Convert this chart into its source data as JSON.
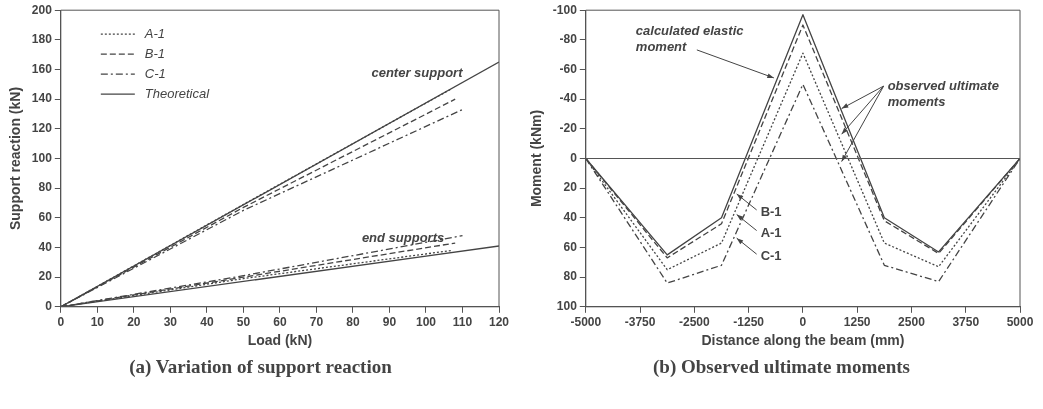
{
  "chart_data": [
    {
      "type": "line",
      "title": "(a)  Variation of support reaction",
      "xlabel": "Load (kN)",
      "ylabel": "Support reaction (kN)",
      "xlim": [
        0,
        120
      ],
      "xticks": [
        0,
        10,
        20,
        30,
        40,
        50,
        60,
        70,
        80,
        90,
        100,
        110,
        120
      ],
      "ylim": [
        0,
        200
      ],
      "yticks": [
        0,
        20,
        40,
        60,
        80,
        100,
        120,
        140,
        160,
        180,
        200
      ],
      "grid": false,
      "legend": "top left",
      "marker": "none",
      "series": [
        {
          "name": "A-1",
          "color": "#444444",
          "line_style": "dotted",
          "x": [
            0,
            50,
            107
          ],
          "values": [
            0,
            69,
            147
          ]
        },
        {
          "name": "B-1",
          "color": "#444444",
          "line_style": "dashed",
          "x": [
            0,
            50,
            108
          ],
          "values": [
            0,
            67,
            140
          ]
        },
        {
          "name": "C-1",
          "color": "#444444",
          "line_style": "dashdot",
          "x": [
            0,
            50,
            110
          ],
          "values": [
            0,
            65,
            133
          ]
        },
        {
          "name": "Theoretical",
          "color": "#444444",
          "line_style": "solid",
          "x": [
            0,
            120
          ],
          "values": [
            0,
            165
          ]
        },
        {
          "color": "#444444",
          "line_style": "dotted",
          "x": [
            0,
            50,
            107
          ],
          "values": [
            0,
            19,
            38
          ]
        },
        {
          "color": "#444444",
          "line_style": "dashed",
          "x": [
            0,
            50,
            108
          ],
          "values": [
            0,
            20,
            43
          ]
        },
        {
          "color": "#444444",
          "line_style": "dashdot",
          "x": [
            0,
            50,
            110
          ],
          "values": [
            0,
            21,
            48
          ]
        },
        {
          "color": "#444444",
          "line_style": "solid",
          "x": [
            0,
            120
          ],
          "values": [
            0,
            41
          ]
        }
      ],
      "annotations": [
        {
          "text": "center support",
          "x": 110,
          "y": 155
        },
        {
          "text": "end supports",
          "x": 105,
          "y": 44
        }
      ]
    },
    {
      "type": "line",
      "title": "(b) Observed ultimate moments",
      "xlabel": "Distance along the beam (mm)",
      "ylabel": "Moment (kNm)",
      "xlim": [
        -5000,
        5000
      ],
      "xticks": [
        -5000,
        -3750,
        -2500,
        -1250,
        0,
        1250,
        2500,
        3750,
        5000
      ],
      "ylim": [
        100,
        -100
      ],
      "yticks": [
        -100,
        -80,
        -60,
        -40,
        -20,
        0,
        20,
        40,
        60,
        80,
        100
      ],
      "grid": false,
      "legend": "center",
      "marker": "none",
      "x": [
        -5000,
        -3125,
        -1875,
        0,
        1875,
        3125,
        5000
      ],
      "series": [
        {
          "color": "#444444",
          "line_style": "solid",
          "values": [
            0,
            65,
            40,
            -97,
            40,
            63,
            0
          ]
        },
        {
          "name": "B-1",
          "color": "#444444",
          "line_style": "dashed",
          "values": [
            0,
            67,
            44,
            -90,
            42,
            64,
            0
          ]
        },
        {
          "name": "A-1",
          "color": "#444444",
          "line_style": "dotted",
          "values": [
            0,
            75,
            57,
            -71,
            57,
            73,
            0
          ]
        },
        {
          "name": "C-1",
          "color": "#444444",
          "line_style": "dashdot",
          "values": [
            0,
            84,
            72,
            -50,
            72,
            83,
            0
          ]
        }
      ],
      "ref_lines": [
        {
          "axis": "y",
          "value": 0
        }
      ],
      "annotations": [
        {
          "text": "calculated elastic moment",
          "x": -600,
          "y": -53
        },
        {
          "text": "observed ultimate moments",
          "x": 800,
          "y": -34
        }
      ]
    }
  ]
}
